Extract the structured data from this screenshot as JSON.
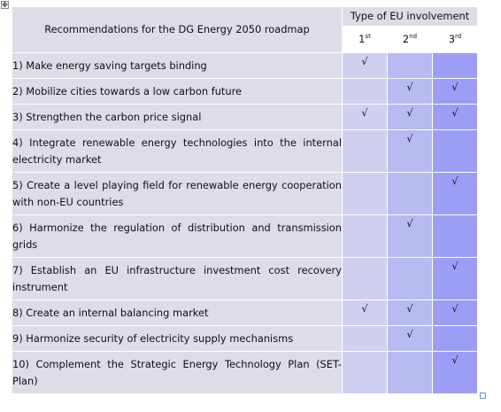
{
  "table": {
    "title": "Recommendations for the DG Energy 2050 roadmap",
    "involvement_header": "Type of EU involvement",
    "orders": [
      {
        "num": "1",
        "suffix": "st"
      },
      {
        "num": "2",
        "suffix": "nd"
      },
      {
        "num": "3",
        "suffix": "rd"
      }
    ],
    "check_symbol": "√",
    "rows": [
      {
        "label": "1) Make energy saving targets binding",
        "marks": [
          true,
          false,
          false
        ]
      },
      {
        "label": "2) Mobilize cities towards a low carbon future",
        "marks": [
          false,
          true,
          true
        ]
      },
      {
        "label": "3) Strengthen the carbon price signal",
        "marks": [
          true,
          true,
          true
        ]
      },
      {
        "label": "4) Integrate renewable energy technologies into the internal electricity market",
        "marks": [
          false,
          true,
          false
        ]
      },
      {
        "label": "5) Create a level playing field for renewable energy cooperation with non-EU countries",
        "marks": [
          false,
          false,
          true
        ]
      },
      {
        "label": "6) Harmonize the regulation of distribution and transmission grids",
        "marks": [
          false,
          true,
          false
        ]
      },
      {
        "label": "7) Establish an EU infrastructure investment cost recovery instrument",
        "marks": [
          false,
          false,
          true
        ]
      },
      {
        "label": "8) Create an internal balancing market",
        "marks": [
          true,
          true,
          true
        ]
      },
      {
        "label": "9) Harmonize security of electricity supply mechanisms",
        "marks": [
          false,
          true,
          false
        ]
      },
      {
        "label": "10) Complement the Strategic Energy Technology Plan (SET-Plan)",
        "marks": [
          false,
          false,
          true
        ]
      }
    ]
  }
}
